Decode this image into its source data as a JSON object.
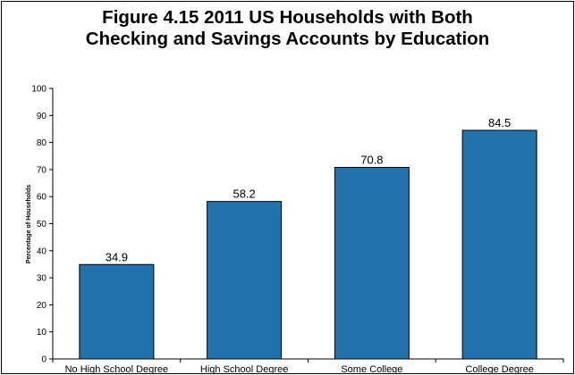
{
  "chart_data": {
    "type": "bar",
    "title": "Figure 4.15  2011 US Households with Both\nChecking and Savings Accounts by Education",
    "xlabel": "",
    "ylabel": "Percentage of Households",
    "ylim": [
      0,
      100
    ],
    "yticks": [
      0,
      10,
      20,
      30,
      40,
      50,
      60,
      70,
      80,
      90,
      100
    ],
    "categories": [
      "No High School Degree",
      "High School Degree",
      "Some College",
      "College Degree"
    ],
    "values": [
      34.9,
      58.2,
      70.8,
      84.5
    ],
    "data_labels": [
      "34.9",
      "58.2",
      "70.8",
      "84.5"
    ],
    "grid": false,
    "legend": "none",
    "bar_color": "#2472ac"
  }
}
